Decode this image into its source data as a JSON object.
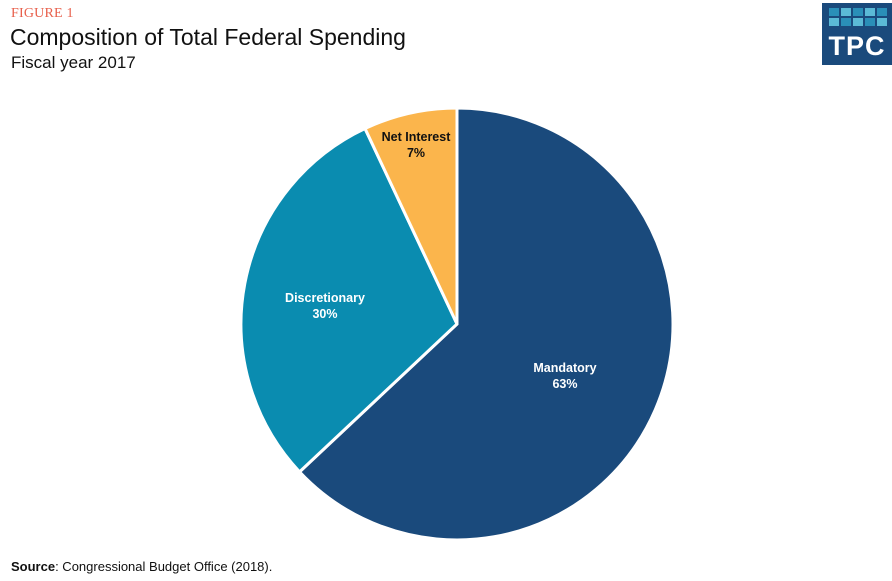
{
  "header": {
    "figure_label": "FIGURE 1",
    "title": "Composition of Total Federal Spending",
    "subtitle": "Fiscal year 2017"
  },
  "logo": {
    "text": "TPC",
    "background": "#1a4a7c",
    "grid_colors": [
      "#2a8fb8",
      "#5bbad6",
      "#2a8fb8",
      "#5bbad6",
      "#2a8fb8",
      "#5bbad6",
      "#2a8fb8",
      "#5bbad6",
      "#2a8fb8",
      "#5bbad6"
    ]
  },
  "footer": {
    "source_label": "Source",
    "source_text": ": Congressional Budget Office  (2018)."
  },
  "chart_data": {
    "type": "pie",
    "title": "Composition of Total Federal Spending",
    "subtitle": "Fiscal year 2017",
    "start": "12 o'clock",
    "direction": "clockwise",
    "slices": [
      {
        "label": "Mandatory",
        "value": 63,
        "display": "63%",
        "color": "#1a4a7c",
        "text_color": "#ffffff"
      },
      {
        "label": "Discretionary",
        "value": 30,
        "display": "30%",
        "color": "#0a8cb0",
        "text_color": "#ffffff"
      },
      {
        "label": "Net Interest",
        "value": 7,
        "display": "7%",
        "color": "#fbb54c",
        "text_color": "#111111"
      }
    ],
    "legend": "none (labels on slices)"
  }
}
